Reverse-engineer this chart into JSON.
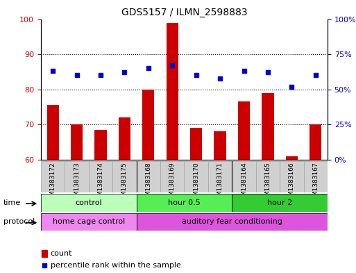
{
  "title": "GDS5157 / ILMN_2598883",
  "samples": [
    "GSM1383172",
    "GSM1383173",
    "GSM1383174",
    "GSM1383175",
    "GSM1383168",
    "GSM1383169",
    "GSM1383170",
    "GSM1383171",
    "GSM1383164",
    "GSM1383165",
    "GSM1383166",
    "GSM1383167"
  ],
  "bar_values": [
    75.5,
    70.0,
    68.5,
    72.0,
    80.0,
    99.0,
    69.0,
    68.0,
    76.5,
    79.0,
    61.0,
    70.0
  ],
  "percentile_values": [
    63,
    60,
    60,
    62,
    65,
    67,
    60,
    58,
    63,
    62,
    52,
    60
  ],
  "bar_color": "#cc0000",
  "percentile_color": "#0000cc",
  "ylim_left": [
    60,
    100
  ],
  "ylim_right": [
    0,
    100
  ],
  "yticks_left": [
    60,
    70,
    80,
    90,
    100
  ],
  "yticks_right": [
    0,
    25,
    50,
    75,
    100
  ],
  "ytick_labels_right": [
    "0%",
    "25%",
    "50%",
    "75%",
    "100%"
  ],
  "grid_values": [
    70,
    80,
    90
  ],
  "time_groups": [
    {
      "label": "control",
      "start": 0,
      "end": 4,
      "color": "#bbffbb"
    },
    {
      "label": "hour 0.5",
      "start": 4,
      "end": 8,
      "color": "#55ee55"
    },
    {
      "label": "hour 2",
      "start": 8,
      "end": 12,
      "color": "#33cc33"
    }
  ],
  "protocol_groups": [
    {
      "label": "home cage control",
      "start": 0,
      "end": 4,
      "color": "#ee88ee"
    },
    {
      "label": "auditory fear conditioning",
      "start": 4,
      "end": 12,
      "color": "#dd55dd"
    }
  ],
  "time_label": "time",
  "protocol_label": "protocol",
  "legend_count_label": "count",
  "legend_percentile_label": "percentile rank within the sample",
  "bar_width": 0.5,
  "plot_bg": "#ffffff",
  "tick_label_color_left": "#cc0000",
  "tick_label_color_right": "#0000cc"
}
